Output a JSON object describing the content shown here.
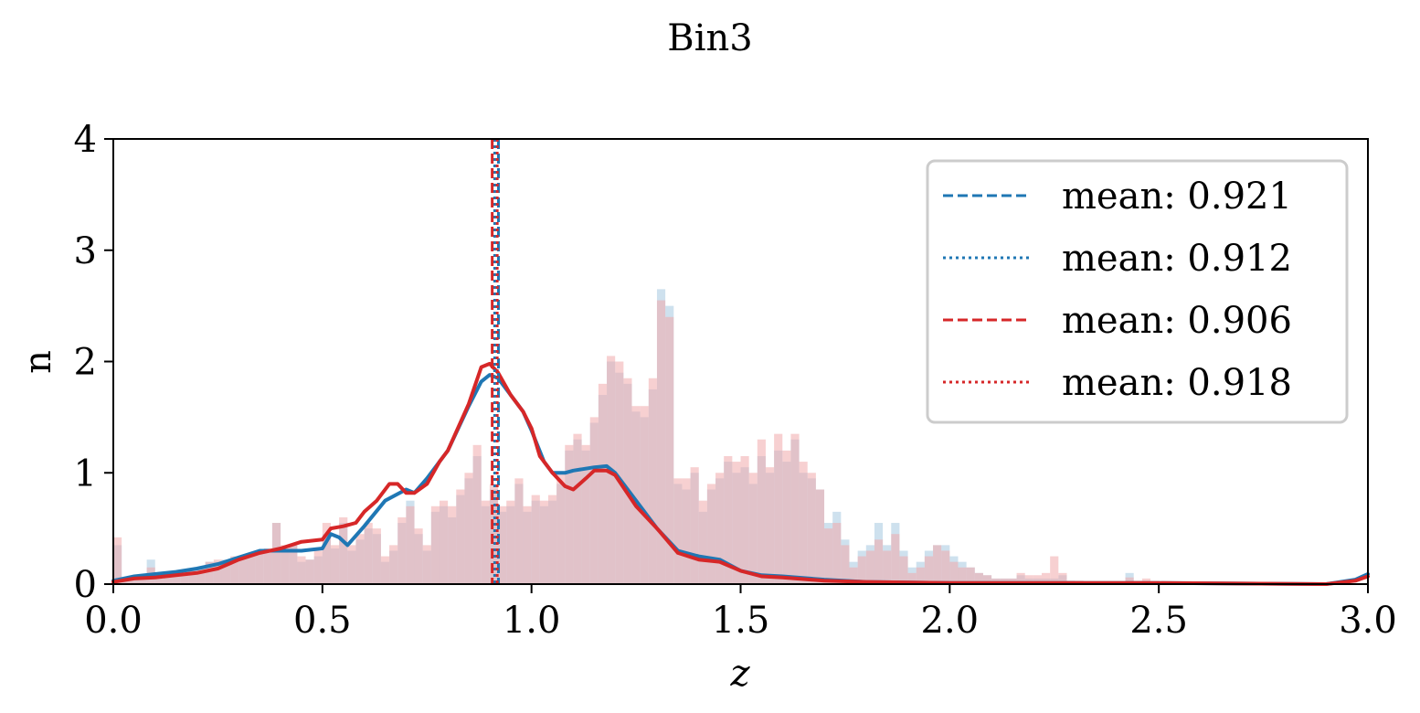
{
  "chart_data": {
    "type": "bar",
    "title": "Bin3",
    "xlabel": "z",
    "ylabel": "n",
    "xlim": [
      0.0,
      3.0
    ],
    "ylim": [
      0,
      4
    ],
    "xticks": [
      "0.0",
      "0.5",
      "1.0",
      "1.5",
      "2.0",
      "2.5",
      "3.0"
    ],
    "yticks": [
      "0",
      "1",
      "2",
      "3",
      "4"
    ],
    "grid": false,
    "legend_position": "top-right",
    "colors": {
      "blue": "#1f77b4",
      "red": "#d62728",
      "hist_blue": "#a6c8e0",
      "hist_red": "#f1aaab"
    },
    "bin_width": 0.02,
    "histograms": [
      {
        "color": "blue",
        "counts": [
          0.35,
          0.05,
          0.05,
          0.05,
          0.22,
          0.05,
          0.1,
          0.1,
          0.12,
          0.12,
          0.15,
          0.2,
          0.2,
          0.22,
          0.22,
          0.25,
          0.28,
          0.3,
          0.32,
          0.55,
          0.32,
          0.35,
          0.2,
          0.22,
          0.25,
          0.45,
          0.32,
          0.55,
          0.3,
          0.4,
          0.5,
          0.45,
          0.2,
          0.3,
          0.55,
          0.75,
          0.45,
          0.3,
          0.65,
          0.7,
          0.6,
          0.8,
          0.95,
          1.15,
          0.7,
          0.85,
          0.65,
          0.7,
          0.9,
          0.65,
          0.75,
          0.7,
          0.75,
          0.9,
          1.2,
          1.3,
          1.2,
          1.45,
          1.7,
          2.0,
          1.9,
          1.8,
          1.55,
          1.5,
          1.75,
          2.65,
          2.5,
          0.9,
          0.85,
          1.0,
          0.65,
          0.85,
          0.95,
          1.1,
          1.0,
          1.05,
          0.9,
          1.15,
          1.0,
          1.2,
          1.1,
          1.3,
          1.0,
          0.95,
          0.85,
          0.55,
          0.65,
          0.4,
          0.2,
          0.3,
          0.35,
          0.55,
          0.35,
          0.55,
          0.3,
          0.15,
          0.2,
          0.3,
          0.35,
          0.35,
          0.25,
          0.2,
          0.15,
          0.1,
          0.08,
          0.05,
          0.05,
          0.05,
          0.08,
          0.05,
          0.05,
          0.05,
          0.05,
          0.08,
          0.03,
          0.02,
          0.02,
          0.02,
          0.02,
          0.02,
          0.02,
          0.1,
          0.02,
          0.02,
          0.01,
          0.02,
          0.01,
          0.02,
          0.02,
          0.01
        ]
      },
      {
        "color": "red",
        "counts": [
          0.42,
          0.05,
          0.05,
          0.05,
          0.15,
          0.05,
          0.1,
          0.1,
          0.12,
          0.12,
          0.15,
          0.2,
          0.22,
          0.2,
          0.25,
          0.25,
          0.28,
          0.3,
          0.32,
          0.55,
          0.35,
          0.35,
          0.25,
          0.22,
          0.3,
          0.55,
          0.35,
          0.6,
          0.35,
          0.45,
          0.55,
          0.5,
          0.25,
          0.35,
          0.6,
          0.7,
          0.5,
          0.35,
          0.7,
          0.75,
          0.7,
          0.85,
          1.0,
          1.25,
          0.75,
          0.9,
          0.7,
          0.75,
          0.95,
          0.7,
          0.8,
          0.75,
          0.8,
          1.0,
          1.25,
          1.35,
          1.25,
          1.5,
          1.8,
          2.05,
          2.0,
          1.85,
          1.6,
          1.6,
          1.85,
          2.55,
          2.4,
          0.95,
          0.95,
          1.05,
          0.75,
          0.9,
          1.0,
          1.15,
          1.1,
          1.15,
          1.0,
          1.3,
          1.05,
          1.35,
          1.2,
          1.35,
          1.1,
          1.0,
          0.85,
          0.5,
          0.55,
          0.35,
          0.15,
          0.25,
          0.3,
          0.4,
          0.3,
          0.45,
          0.25,
          0.1,
          0.15,
          0.25,
          0.35,
          0.3,
          0.2,
          0.15,
          0.15,
          0.1,
          0.08,
          0.05,
          0.05,
          0.05,
          0.1,
          0.08,
          0.08,
          0.1,
          0.25,
          0.1,
          0.03,
          0.03,
          0.02,
          0.02,
          0.02,
          0.02,
          0.02,
          0.06,
          0.03,
          0.05,
          0.02,
          0.02,
          0.01,
          0.02,
          0.02,
          0.01
        ]
      }
    ],
    "curves": [
      {
        "color": "blue",
        "x": [
          0,
          0.05,
          0.1,
          0.15,
          0.2,
          0.25,
          0.3,
          0.35,
          0.4,
          0.45,
          0.5,
          0.52,
          0.54,
          0.56,
          0.6,
          0.65,
          0.7,
          0.72,
          0.75,
          0.78,
          0.8,
          0.85,
          0.88,
          0.9,
          0.92,
          0.95,
          0.98,
          1.0,
          1.03,
          1.05,
          1.08,
          1.1,
          1.15,
          1.18,
          1.2,
          1.25,
          1.3,
          1.35,
          1.4,
          1.45,
          1.5,
          1.55,
          1.6,
          1.7,
          1.8,
          2.0,
          2.5,
          2.9,
          2.97,
          3.0
        ],
        "y": [
          0.03,
          0.07,
          0.09,
          0.11,
          0.14,
          0.18,
          0.24,
          0.3,
          0.3,
          0.3,
          0.32,
          0.45,
          0.42,
          0.35,
          0.52,
          0.75,
          0.85,
          0.82,
          0.95,
          1.1,
          1.2,
          1.6,
          1.82,
          1.88,
          1.85,
          1.7,
          1.55,
          1.38,
          1.1,
          1.0,
          1.0,
          1.02,
          1.05,
          1.06,
          1.0,
          0.75,
          0.5,
          0.3,
          0.25,
          0.22,
          0.12,
          0.08,
          0.07,
          0.04,
          0.02,
          0.01,
          0.01,
          0.0,
          0.04,
          0.09
        ]
      },
      {
        "color": "red",
        "x": [
          0,
          0.05,
          0.1,
          0.15,
          0.2,
          0.25,
          0.3,
          0.35,
          0.4,
          0.45,
          0.5,
          0.52,
          0.55,
          0.58,
          0.6,
          0.63,
          0.66,
          0.68,
          0.7,
          0.72,
          0.75,
          0.78,
          0.8,
          0.85,
          0.88,
          0.9,
          0.92,
          0.95,
          0.98,
          1.0,
          1.02,
          1.05,
          1.08,
          1.1,
          1.13,
          1.15,
          1.18,
          1.2,
          1.25,
          1.3,
          1.35,
          1.4,
          1.45,
          1.5,
          1.55,
          1.6,
          1.7,
          1.8,
          2.0,
          2.5,
          2.9,
          2.97,
          3.0
        ],
        "y": [
          0.02,
          0.05,
          0.06,
          0.08,
          0.1,
          0.14,
          0.22,
          0.28,
          0.32,
          0.38,
          0.4,
          0.5,
          0.52,
          0.55,
          0.65,
          0.75,
          0.9,
          0.9,
          0.82,
          0.82,
          0.9,
          1.1,
          1.2,
          1.62,
          1.95,
          1.98,
          1.9,
          1.7,
          1.55,
          1.4,
          1.15,
          1.0,
          0.88,
          0.85,
          0.95,
          1.02,
          1.02,
          0.98,
          0.7,
          0.5,
          0.28,
          0.22,
          0.2,
          0.12,
          0.07,
          0.06,
          0.03,
          0.02,
          0.01,
          0.01,
          0.0,
          0.03,
          0.07
        ]
      }
    ],
    "vlines": [
      {
        "x": 0.921,
        "color": "blue",
        "style": "dashed"
      },
      {
        "x": 0.912,
        "color": "blue",
        "style": "dotted"
      },
      {
        "x": 0.906,
        "color": "red",
        "style": "dashed"
      },
      {
        "x": 0.918,
        "color": "red",
        "style": "dotted"
      }
    ],
    "legend": [
      {
        "label": "mean: 0.921",
        "color": "blue",
        "style": "dashed"
      },
      {
        "label": "mean: 0.912",
        "color": "blue",
        "style": "dotted"
      },
      {
        "label": "mean: 0.906",
        "color": "red",
        "style": "dashed"
      },
      {
        "label": "mean: 0.918",
        "color": "red",
        "style": "dotted"
      }
    ]
  }
}
